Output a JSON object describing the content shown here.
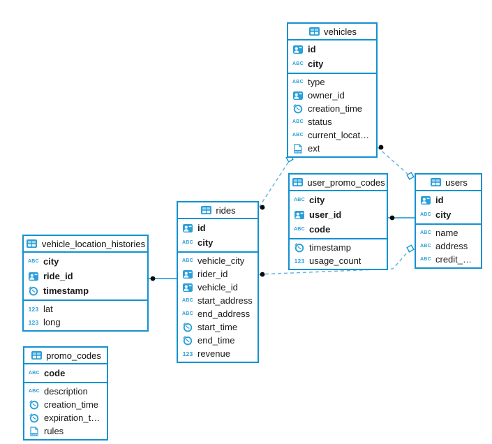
{
  "diagram": {
    "accent_color": "#1291d0",
    "icon_color": "#2b9fd8",
    "dashed_line_color": "#69b4e0",
    "solid_line_color": "#1291d0",
    "icon_glyphs": {
      "abc": "ABC",
      "number": "123",
      "json": "JSON"
    },
    "tables": [
      {
        "name": "vehicles",
        "columns": [
          {
            "name": "id",
            "icon": "id-card",
            "pk": true
          },
          {
            "name": "city",
            "icon": "abc",
            "pk": true
          },
          {
            "name": "type",
            "icon": "abc",
            "pk": false
          },
          {
            "name": "owner_id",
            "icon": "id-card",
            "pk": false
          },
          {
            "name": "creation_time",
            "icon": "clock",
            "pk": false
          },
          {
            "name": "status",
            "icon": "abc",
            "pk": false
          },
          {
            "name": "current_location",
            "icon": "abc",
            "pk": false
          },
          {
            "name": "ext",
            "icon": "json",
            "pk": false
          }
        ]
      },
      {
        "name": "user_promo_codes",
        "columns": [
          {
            "name": "city",
            "icon": "abc",
            "pk": true
          },
          {
            "name": "user_id",
            "icon": "id-card",
            "pk": true
          },
          {
            "name": "code",
            "icon": "abc",
            "pk": true
          },
          {
            "name": "timestamp",
            "icon": "clock",
            "pk": false
          },
          {
            "name": "usage_count",
            "icon": "number",
            "pk": false
          }
        ]
      },
      {
        "name": "users",
        "columns": [
          {
            "name": "id",
            "icon": "id-card",
            "pk": true
          },
          {
            "name": "city",
            "icon": "abc",
            "pk": true
          },
          {
            "name": "name",
            "icon": "abc",
            "pk": false
          },
          {
            "name": "address",
            "icon": "abc",
            "pk": false
          },
          {
            "name": "credit_card",
            "icon": "abc",
            "pk": false
          }
        ]
      },
      {
        "name": "rides",
        "columns": [
          {
            "name": "id",
            "icon": "id-card",
            "pk": true
          },
          {
            "name": "city",
            "icon": "abc",
            "pk": true
          },
          {
            "name": "vehicle_city",
            "icon": "abc",
            "pk": false
          },
          {
            "name": "rider_id",
            "icon": "id-card",
            "pk": false
          },
          {
            "name": "vehicle_id",
            "icon": "id-card",
            "pk": false
          },
          {
            "name": "start_address",
            "icon": "abc",
            "pk": false
          },
          {
            "name": "end_address",
            "icon": "abc",
            "pk": false
          },
          {
            "name": "start_time",
            "icon": "clock",
            "pk": false
          },
          {
            "name": "end_time",
            "icon": "clock",
            "pk": false
          },
          {
            "name": "revenue",
            "icon": "number",
            "pk": false
          }
        ]
      },
      {
        "name": "vehicle_location_histories",
        "columns": [
          {
            "name": "city",
            "icon": "abc",
            "pk": true
          },
          {
            "name": "ride_id",
            "icon": "id-card",
            "pk": true
          },
          {
            "name": "timestamp",
            "icon": "clock",
            "pk": true
          },
          {
            "name": "lat",
            "icon": "number",
            "pk": false
          },
          {
            "name": "long",
            "icon": "number",
            "pk": false
          }
        ]
      },
      {
        "name": "promo_codes",
        "columns": [
          {
            "name": "code",
            "icon": "abc",
            "pk": true
          },
          {
            "name": "description",
            "icon": "abc",
            "pk": false
          },
          {
            "name": "creation_time",
            "icon": "clock",
            "pk": false
          },
          {
            "name": "expiration_time",
            "icon": "clock",
            "pk": false
          },
          {
            "name": "rules",
            "icon": "json",
            "pk": false
          }
        ]
      }
    ],
    "relations": [
      {
        "from": "rides",
        "to": "vehicles",
        "style": "dashed",
        "from_marker": "dot",
        "to_marker": "diamond"
      },
      {
        "from": "vehicles",
        "to": "users",
        "style": "dashed",
        "from_marker": "dot",
        "to_marker": "diamond"
      },
      {
        "from": "rides",
        "to": "users",
        "style": "dashed",
        "from_marker": "dot",
        "to_marker": "diamond"
      },
      {
        "from": "user_promo_codes",
        "to": "users",
        "style": "solid",
        "from_marker": "dot",
        "to_marker": "none"
      },
      {
        "from": "vehicle_location_histories",
        "to": "rides",
        "style": "solid",
        "from_marker": "dot",
        "to_marker": "none"
      }
    ]
  }
}
